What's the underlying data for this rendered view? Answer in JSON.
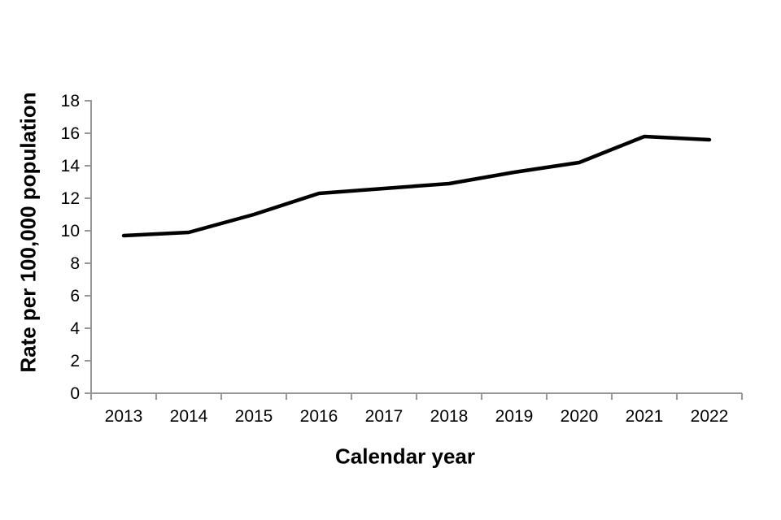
{
  "chart_data": {
    "type": "line",
    "title": "",
    "xlabel": "Calendar year",
    "ylabel": "Rate per 100,000 population",
    "categories": [
      "2013",
      "2014",
      "2015",
      "2016",
      "2017",
      "2018",
      "2019",
      "2020",
      "2021",
      "2022"
    ],
    "series": [
      {
        "name": "Rate per 100,000 population",
        "values": [
          9.7,
          9.9,
          11.0,
          12.3,
          12.6,
          12.9,
          13.6,
          14.2,
          15.8,
          15.6
        ]
      }
    ],
    "ylim": [
      0,
      18
    ],
    "ytick_step": 2,
    "yticks": [
      0,
      2,
      4,
      6,
      8,
      10,
      12,
      14,
      16,
      18
    ],
    "grid": false,
    "legend": "none",
    "line_color": "#000000",
    "axis_color": "#969696",
    "text_color": "#000000",
    "background_color": "#ffffff"
  }
}
